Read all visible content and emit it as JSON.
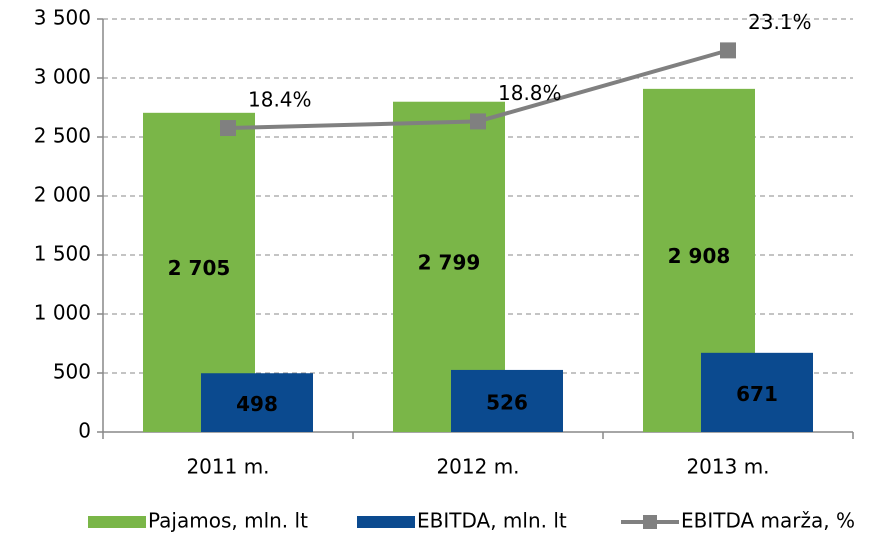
{
  "chart_data": {
    "type": "bar",
    "categories": [
      "2011 m.",
      "2012 m.",
      "2013 m."
    ],
    "series": [
      {
        "name": "Pajamos, mln. lt",
        "color": "#7ab648",
        "values": [
          2705,
          2799,
          2908
        ],
        "value_labels": [
          "2 705",
          "2 799",
          "2 908"
        ]
      },
      {
        "name": "EBITDA, mln. lt",
        "color": "#0b4a8f",
        "values": [
          498,
          526,
          671
        ]
      },
      {
        "name": "EBITDA marža, %",
        "color": "#808080",
        "type": "line",
        "axis": "y2",
        "values": [
          18.4,
          18.8,
          23.1
        ],
        "value_labels": [
          "18.4%",
          "18.8%",
          "23.1%"
        ]
      }
    ],
    "ylim": [
      0,
      3500
    ],
    "yticks": [
      0,
      500,
      {
        "value": 1000,
        "label": "1 000"
      },
      {
        "value": 1500,
        "label": "1 500"
      },
      {
        "value": 2000,
        "label": "2 000"
      },
      {
        "value": 2500,
        "label": "2 500"
      },
      {
        "value": 3000,
        "label": "3 000"
      },
      {
        "value": 3500,
        "label": "3 500"
      }
    ],
    "y2lim": [
      0,
      25
    ],
    "grid": true,
    "legend": "bottom"
  }
}
